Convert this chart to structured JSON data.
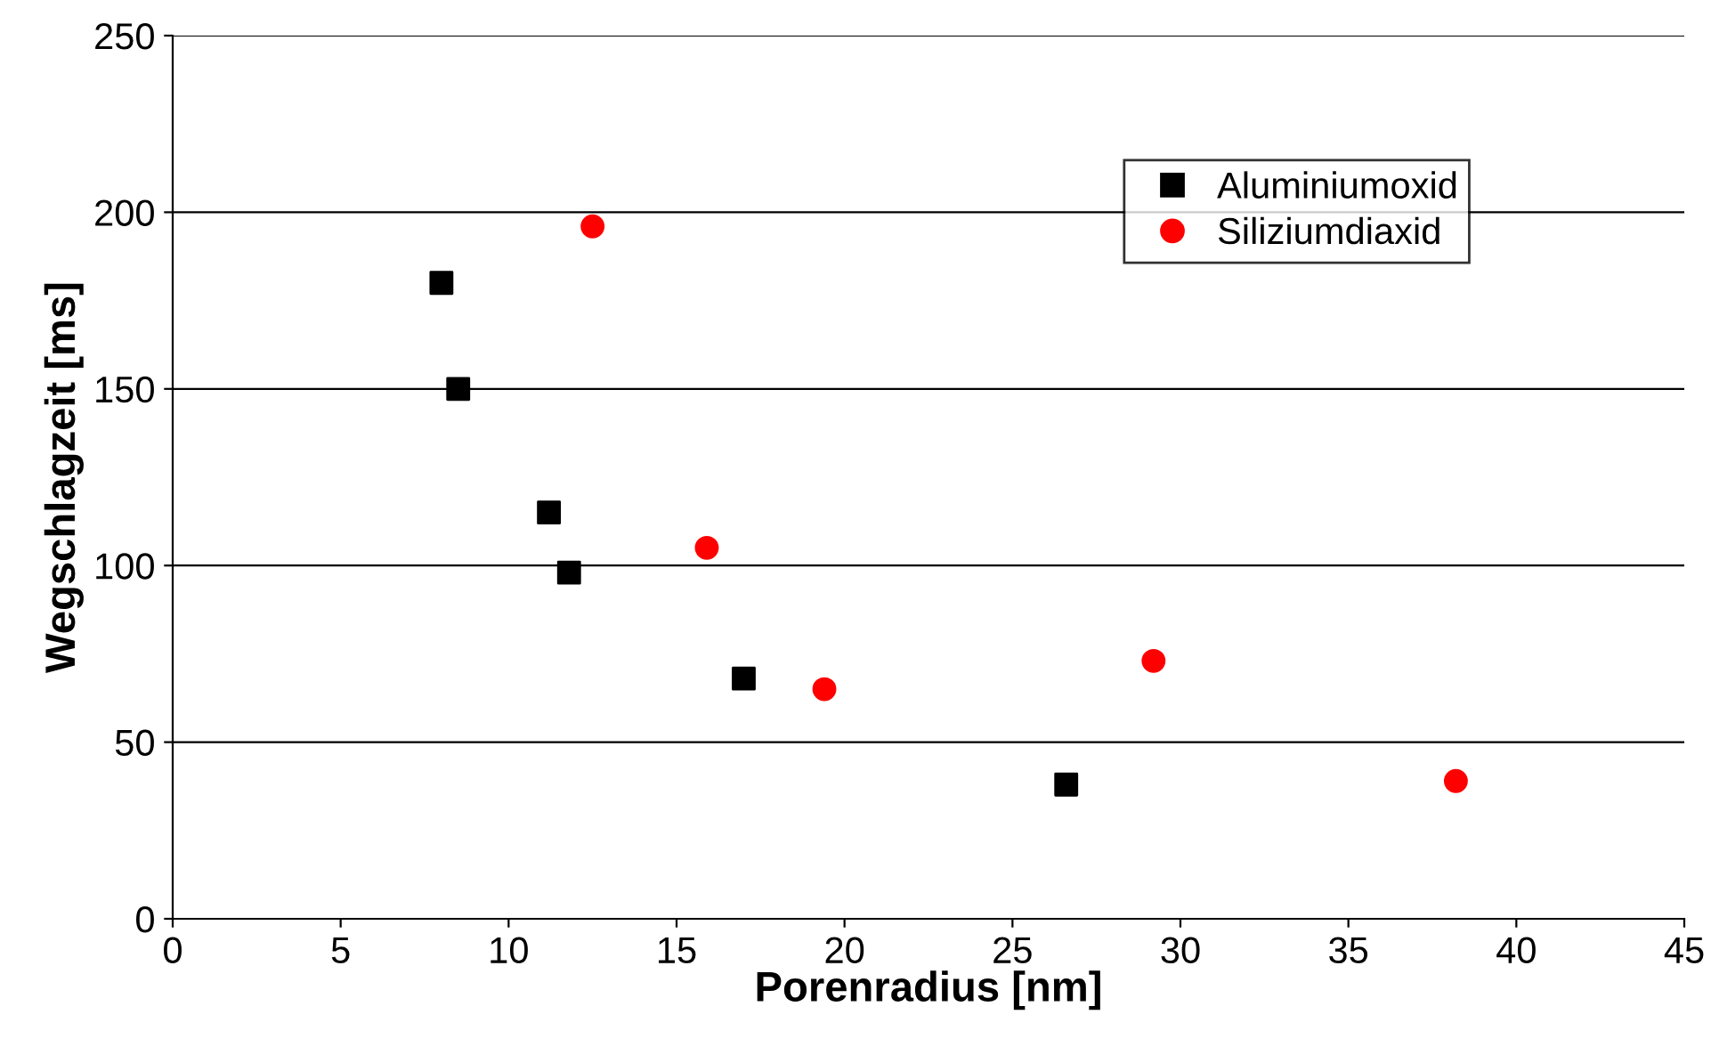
{
  "chart_data": {
    "type": "scatter",
    "xlabel": "Porenradius [nm]",
    "ylabel": "Wegschlagzeit [ms]",
    "xlim": [
      0,
      45
    ],
    "xticks": [
      0,
      5,
      10,
      15,
      20,
      25,
      30,
      35,
      40,
      45
    ],
    "ylim": [
      0,
      250
    ],
    "yticks": [
      0,
      50,
      100,
      150,
      200,
      250
    ],
    "grid": "y",
    "legend": "top right",
    "series": [
      {
        "name": "Aluminiumoxid",
        "color": "#000000",
        "marker": "square",
        "x": [
          8.0,
          8.5,
          11.2,
          11.8,
          17.0,
          26.6
        ],
        "values": [
          180,
          150,
          115,
          98,
          68,
          38
        ]
      },
      {
        "name": "Siliziumdiaxid",
        "color": "#ff0000",
        "marker": "circle",
        "x": [
          12.5,
          15.9,
          19.4,
          29.2,
          38.2
        ],
        "values": [
          196,
          105,
          65,
          73,
          39
        ]
      }
    ]
  }
}
